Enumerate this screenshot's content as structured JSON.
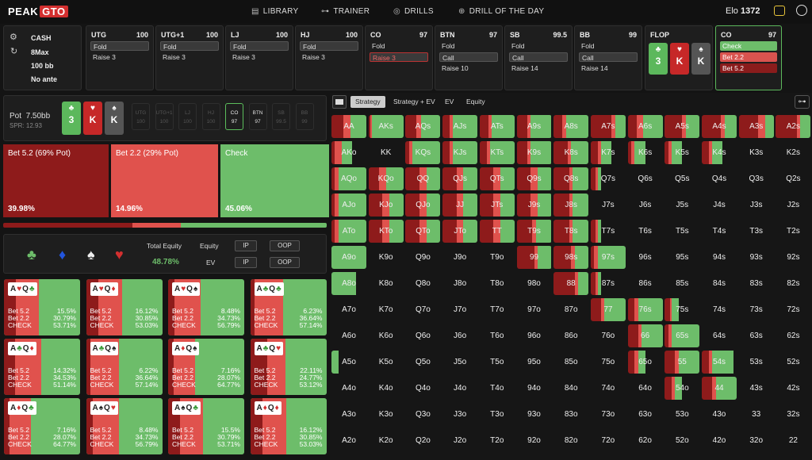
{
  "topbar": {
    "logo_a": "PEAK",
    "logo_b": "GTO",
    "nav": [
      {
        "label": "LIBRARY",
        "icon": "book-icon"
      },
      {
        "label": "TRAINER",
        "icon": "gamepad-icon"
      },
      {
        "label": "DRILLS",
        "icon": "target-icon"
      },
      {
        "label": "DRILL OF THE DAY",
        "icon": "plus-circle-icon"
      }
    ],
    "elo_label": "Elo",
    "elo_value": "1372"
  },
  "game": {
    "type": "CASH",
    "players": "8Max",
    "stack": "100 bb",
    "ante": "No ante"
  },
  "positions": [
    {
      "name": "UTG",
      "stack": "100",
      "actions": [
        "Fold",
        "Raise 3"
      ],
      "selected": 0
    },
    {
      "name": "UTG+1",
      "stack": "100",
      "actions": [
        "Fold",
        "Raise 3"
      ],
      "selected": 0
    },
    {
      "name": "LJ",
      "stack": "100",
      "actions": [
        "Fold",
        "Raise 3"
      ],
      "selected": 0
    },
    {
      "name": "HJ",
      "stack": "100",
      "actions": [
        "Fold",
        "Raise 3"
      ],
      "selected": 0
    },
    {
      "name": "CO",
      "stack": "97",
      "actions": [
        "Fold",
        "Raise 3"
      ],
      "selected": 1
    },
    {
      "name": "BTN",
      "stack": "97",
      "actions": [
        "Fold",
        "Call",
        "Raise 10"
      ],
      "selected": 1
    },
    {
      "name": "SB",
      "stack": "99.5",
      "actions": [
        "Fold",
        "Call",
        "Raise 14"
      ],
      "selected": 1
    },
    {
      "name": "BB",
      "stack": "99",
      "actions": [
        "Fold",
        "Call",
        "Raise 14"
      ],
      "selected": 1
    }
  ],
  "flop": {
    "label": "FLOP",
    "cards": [
      {
        "rank": "3",
        "suit": "♣",
        "color": "#5cb85c"
      },
      {
        "rank": "K",
        "suit": "♥",
        "color": "#c62828"
      },
      {
        "rank": "K",
        "suit": "♠",
        "color": "#555555"
      }
    ]
  },
  "current": {
    "name": "CO",
    "stack": "97",
    "actions": [
      "Check",
      "Bet 2.2",
      "Bet 5.2"
    ]
  },
  "hud": {
    "pot_label": "Pot",
    "pot_value": "7.50bb",
    "spr": "SPR: 12.93",
    "positions": [
      {
        "n": "UTG",
        "s": "100"
      },
      {
        "n": "UTG+1",
        "s": "100"
      },
      {
        "n": "LJ",
        "s": "100"
      },
      {
        "n": "HJ",
        "s": "100"
      },
      {
        "n": "CO",
        "s": "97"
      },
      {
        "n": "BTN",
        "s": "97"
      },
      {
        "n": "SB",
        "s": "99.5"
      },
      {
        "n": "BB",
        "s": "99"
      }
    ]
  },
  "strategy": [
    {
      "label": "Bet 5.2 (69% Pot)",
      "pct": "39.98%",
      "freq": 0.3998,
      "color": "#8e1b1b"
    },
    {
      "label": "Bet 2.2 (29% Pot)",
      "pct": "14.96%",
      "freq": 0.1496,
      "color": "#e0524d"
    },
    {
      "label": "Check",
      "pct": "45.06%",
      "freq": 0.4506,
      "color": "#6dbd6a"
    }
  ],
  "equity": {
    "total_label": "Total Equity",
    "total_value": "48.78%",
    "equity_label": "Equity",
    "ev_label": "EV",
    "ip": "IP",
    "oop": "OOP",
    "suits": [
      "♣",
      "♦",
      "♠",
      "♥"
    ]
  },
  "combos": [
    {
      "c1": "A",
      "s1": "♥",
      "c2": "Q",
      "s2": "♣",
      "b52": "15.5%",
      "b22": "30.79%",
      "chk": "53.71%"
    },
    {
      "c1": "A",
      "s1": "♥",
      "c2": "Q",
      "s2": "♦",
      "b52": "16.12%",
      "b22": "30.85%",
      "chk": "53.03%"
    },
    {
      "c1": "A",
      "s1": "♥",
      "c2": "Q",
      "s2": "♠",
      "b52": "8.48%",
      "b22": "34.73%",
      "chk": "56.79%"
    },
    {
      "c1": "A",
      "s1": "♣",
      "c2": "Q",
      "s2": "♣",
      "b52": "6.23%",
      "b22": "36.64%",
      "chk": "57.14%"
    },
    {
      "c1": "A",
      "s1": "♣",
      "c2": "Q",
      "s2": "♦",
      "b52": "14.32%",
      "b22": "34.53%",
      "chk": "51.14%"
    },
    {
      "c1": "A",
      "s1": "♣",
      "c2": "Q",
      "s2": "♠",
      "b52": "6.22%",
      "b22": "36.64%",
      "chk": "57.14%"
    },
    {
      "c1": "A",
      "s1": "♦",
      "c2": "Q",
      "s2": "♠",
      "b52": "7.16%",
      "b22": "28.07%",
      "chk": "64.77%"
    },
    {
      "c1": "A",
      "s1": "♣",
      "c2": "Q",
      "s2": "♥",
      "b52": "22.11%",
      "b22": "24.77%",
      "chk": "53.12%"
    },
    {
      "c1": "A",
      "s1": "♦",
      "c2": "Q",
      "s2": "♣",
      "b52": "7.16%",
      "b22": "28.07%",
      "chk": "64.77%"
    },
    {
      "c1": "A",
      "s1": "♠",
      "c2": "Q",
      "s2": "♥",
      "b52": "8.48%",
      "b22": "34.73%",
      "chk": "56.79%"
    },
    {
      "c1": "A",
      "s1": "♠",
      "c2": "Q",
      "s2": "♣",
      "b52": "15.5%",
      "b22": "30.79%",
      "chk": "53.71%"
    },
    {
      "c1": "A",
      "s1": "♦",
      "c2": "Q",
      "s2": "♦",
      "b52": "16.12%",
      "b22": "30.85%",
      "chk": "53.03%"
    }
  ],
  "combo_labels": {
    "b52": "Bet 5.2",
    "b22": "Bet 2.2",
    "chk": "CHECK"
  },
  "tabs": [
    "Strategy",
    "Strategy + EV",
    "EV",
    "Equity"
  ],
  "grid": {
    "ranks": [
      "A",
      "K",
      "Q",
      "J",
      "T",
      "9",
      "8",
      "7",
      "6",
      "5",
      "4",
      "3",
      "2"
    ],
    "strategies": {
      "0": [
        [
          0.35,
          0.2,
          0.45
        ],
        [
          0.05,
          0.05,
          0.9
        ],
        [
          0.3,
          0.15,
          0.55
        ],
        [
          0.2,
          0.1,
          0.7
        ],
        [
          0.25,
          0.1,
          0.65
        ],
        [
          0.3,
          0.1,
          0.6
        ],
        [
          0.25,
          0.1,
          0.65
        ],
        [
          0.6,
          0.1,
          0.3
        ],
        [
          0.25,
          0.2,
          0.55
        ],
        [
          0.5,
          0.1,
          0.4
        ],
        [
          0.55,
          0.1,
          0.35
        ],
        [
          0.55,
          0.2,
          0.25
        ],
        [
          0.6,
          0.1,
          0.3
        ]
      ],
      "1": [
        [
          0.1,
          0.2,
          0.3
        ],
        null,
        [
          0.1,
          0.1,
          0.8
        ],
        [
          0.2,
          0.1,
          0.7
        ],
        [
          0.2,
          0.1,
          0.7
        ],
        [
          0.3,
          0.1,
          0.6
        ],
        [
          0.4,
          0.1,
          0.5
        ],
        [
          0.2,
          0.1,
          0.3
        ],
        [
          0.1,
          0.1,
          0.3
        ],
        [
          0.1,
          0.1,
          0.3
        ],
        [
          0.2,
          0.1,
          0.3
        ],
        null,
        null
      ],
      "2": [
        [
          0.1,
          0.1,
          0.8
        ],
        [
          0.3,
          0.2,
          0.5
        ],
        [
          0.4,
          0.2,
          0.4
        ],
        [
          0.4,
          0.2,
          0.4
        ],
        [
          0.4,
          0.2,
          0.4
        ],
        [
          0.4,
          0.2,
          0.4
        ],
        [
          0.45,
          0.1,
          0.45
        ],
        [
          0.15,
          0.05,
          0.1
        ],
        null,
        null,
        null,
        null,
        null
      ],
      "3": [
        [
          0.1,
          0.1,
          0.8
        ],
        [
          0.4,
          0.2,
          0.4
        ],
        [
          0.4,
          0.2,
          0.4
        ],
        [
          0.4,
          0.2,
          0.4
        ],
        [
          0.4,
          0.2,
          0.4
        ],
        [
          0.4,
          0.2,
          0.4
        ],
        [
          0.45,
          0.1,
          0.45
        ],
        null,
        null,
        null,
        null,
        null,
        null
      ],
      "4": [
        [
          0.1,
          0.1,
          0.8
        ],
        [
          0.4,
          0.2,
          0.4
        ],
        [
          0.4,
          0.2,
          0.4
        ],
        [
          0.4,
          0.2,
          0.4
        ],
        [
          0.4,
          0.2,
          0.4
        ],
        [
          0.45,
          0.1,
          0.45
        ],
        [
          0.45,
          0.1,
          0.45
        ],
        [
          0.15,
          0.05,
          0.1
        ],
        null,
        null,
        null,
        null,
        null
      ],
      "5": [
        [
          0.0,
          0.0,
          1.0
        ],
        null,
        null,
        null,
        null,
        [
          0.5,
          0.1,
          0.4
        ],
        [
          0.5,
          0.1,
          0.4
        ],
        [
          0.1,
          0.1,
          0.8
        ],
        null,
        null,
        null,
        null,
        null
      ],
      "6": [
        [
          0.0,
          0.0,
          0.7
        ],
        null,
        null,
        null,
        null,
        null,
        [
          0.6,
          0.1,
          0.3
        ],
        [
          0.15,
          0.05,
          0.1
        ],
        null,
        null,
        null,
        null,
        null
      ],
      "7": [
        null,
        null,
        null,
        null,
        null,
        null,
        null,
        [
          0.3,
          0.1,
          0.6
        ],
        [
          0.2,
          0.1,
          0.7
        ],
        [
          0.15,
          0.05,
          0.2
        ],
        null,
        null,
        null
      ],
      "8": [
        null,
        null,
        null,
        null,
        null,
        null,
        null,
        null,
        [
          0.3,
          0.1,
          0.6
        ],
        [
          0.1,
          0.1,
          0.8
        ],
        null,
        null,
        null
      ],
      "9": [
        [
          0.0,
          0.0,
          0.2
        ],
        null,
        null,
        null,
        null,
        null,
        null,
        null,
        [
          0.2,
          0.1,
          0.2
        ],
        [
          0.3,
          0.1,
          0.6
        ],
        [
          0.2,
          0.1,
          0.6
        ],
        null,
        null
      ],
      "10": [
        null,
        null,
        null,
        null,
        null,
        null,
        null,
        null,
        null,
        [
          0.2,
          0.1,
          0.2
        ],
        [
          0.3,
          0.1,
          0.6
        ],
        null,
        null
      ],
      "11": [
        null,
        null,
        null,
        null,
        null,
        null,
        null,
        null,
        null,
        null,
        null,
        null,
        null
      ],
      "12": [
        null,
        null,
        null,
        null,
        null,
        null,
        null,
        null,
        null,
        null,
        null,
        null,
        null
      ]
    }
  }
}
